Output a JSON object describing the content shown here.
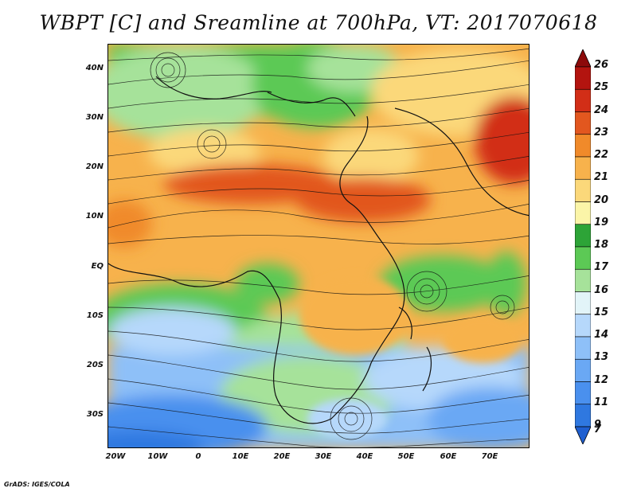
{
  "title": "WBPT [C] and Sreamline at 700hPa, VT: 2017070618",
  "footer": "GrADS: IGES/COLA",
  "map": {
    "lat_ticks": [
      "40N",
      "30N",
      "20N",
      "10N",
      "EQ",
      "10S",
      "20S",
      "30S"
    ],
    "lon_ticks": [
      "20W",
      "10W",
      "0",
      "10E",
      "20E",
      "30E",
      "40E",
      "50E",
      "60E",
      "70E"
    ]
  },
  "colorbar": {
    "labels": [
      "7",
      "9",
      "11",
      "12",
      "13",
      "14",
      "15",
      "16",
      "17",
      "18",
      "19",
      "20",
      "21",
      "22",
      "23",
      "24",
      "25",
      "26"
    ],
    "colors": [
      "#1f5fd0",
      "#2f78e0",
      "#4a90ee",
      "#6aa8f4",
      "#8ec0f8",
      "#b6d8fb",
      "#e2f4f8",
      "#a6e29a",
      "#5cc955",
      "#2da437",
      "#fbf5a8",
      "#fbd87a",
      "#f7b24c",
      "#f08a2a",
      "#e2571f",
      "#d22e17",
      "#b3140f",
      "#8c0a0a"
    ]
  }
}
